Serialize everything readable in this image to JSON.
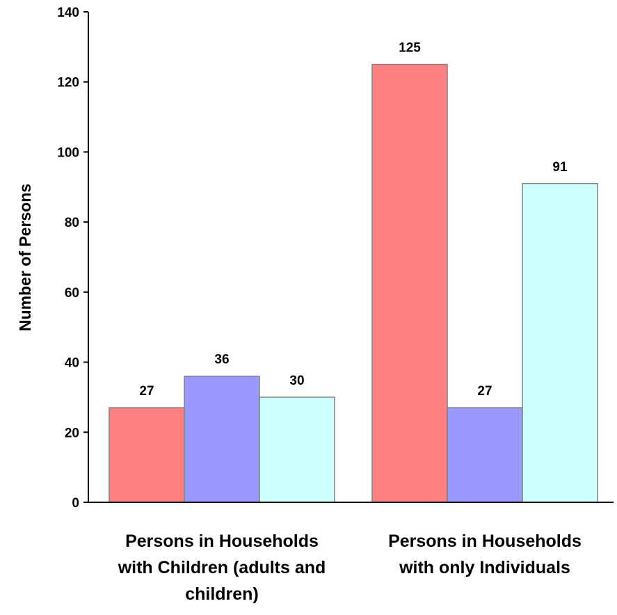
{
  "chart_data": {
    "type": "bar",
    "categories": [
      [
        "Persons in Households",
        "with Children (adults and",
        "children)"
      ],
      [
        "Persons in Households",
        "with only Individuals"
      ]
    ],
    "series": [
      {
        "values": [
          27,
          125
        ],
        "color": "#ff8080"
      },
      {
        "values": [
          36,
          27
        ],
        "color": "#9999ff"
      },
      {
        "values": [
          30,
          91
        ],
        "color": "#ccffff"
      }
    ],
    "ylabel": "Number of Persons",
    "ylim": [
      0,
      140
    ],
    "yticks": [
      0,
      20,
      40,
      60,
      80,
      100,
      120,
      140
    ],
    "grid": false,
    "legend": "none",
    "bar_border_color": "#808080"
  }
}
